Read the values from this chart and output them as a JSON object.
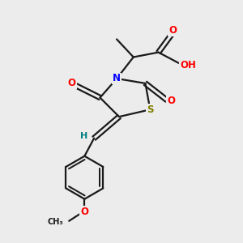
{
  "background_color": "#ececec",
  "bond_color": "#1a1a1a",
  "N_color": "#0000ff",
  "S_color": "#808000",
  "O_color": "#ff0000",
  "H_color": "#008080",
  "figsize": [
    3.0,
    3.0
  ],
  "dpi": 100,
  "xlim": [
    0,
    10
  ],
  "ylim": [
    0,
    10
  ],
  "lw": 1.6,
  "fs": 8.5
}
